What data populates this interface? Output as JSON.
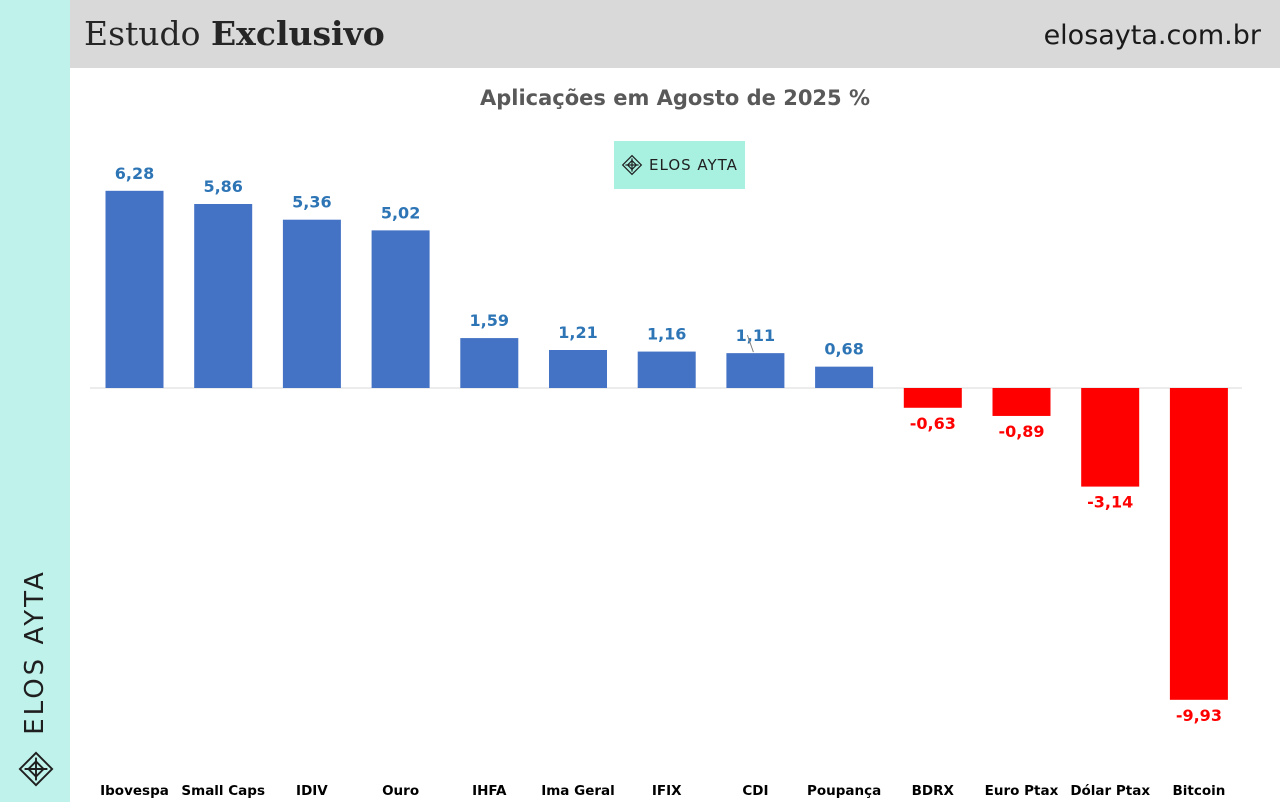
{
  "header": {
    "title_regular": "Estudo",
    "title_bold": "Exclusivo",
    "site": "elosayta.com.br"
  },
  "sidebar": {
    "brand": "ELOS AYTA"
  },
  "badge": {
    "label": "ELOS AYTA"
  },
  "colors": {
    "positive": "#4472c4",
    "negative": "#ff0000",
    "positive_label": "#2e75b6",
    "negative_label": "#ff0000",
    "sidebar": "#bff2ea",
    "badge": "#a8f0e0",
    "header": "#d9d9d9"
  },
  "chart_data": {
    "type": "bar",
    "title": "Aplicações em Agosto de 2025 %",
    "categories": [
      "Ibovespa",
      "Small Caps",
      "IDIV",
      "Ouro",
      "IHFA",
      "Ima Geral",
      "IFIX",
      "CDI",
      "Poupança",
      "BDRX",
      "Euro Ptax",
      "Dólar Ptax",
      "Bitcoin"
    ],
    "values": [
      6.28,
      5.86,
      5.36,
      5.02,
      1.59,
      1.21,
      1.16,
      1.11,
      0.68,
      -0.63,
      -0.89,
      -3.14,
      -9.93
    ],
    "value_labels": [
      "6,28",
      "5,86",
      "5,36",
      "5,02",
      "1,59",
      "1,21",
      "1,16",
      "1,11",
      "0,68",
      "-0,63",
      "-0,89",
      "-3,14",
      "-9,93"
    ],
    "grid": false,
    "legend": "none"
  }
}
